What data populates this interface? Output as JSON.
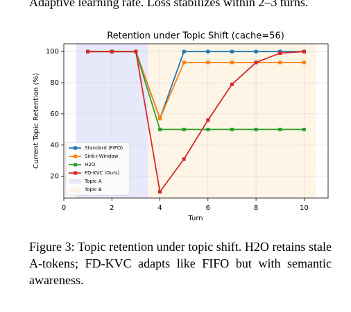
{
  "top_text": "Adaptive learning rate. Loss stabilizes within 2–3 turns.",
  "chart_data": {
    "type": "line",
    "title": "Retention under Topic Shift (cache=56)",
    "xlabel": "Turn",
    "ylabel": "Current Topic Retention (%)",
    "x": [
      1,
      2,
      3,
      4,
      5,
      6,
      7,
      8,
      9,
      10
    ],
    "series": [
      {
        "name": "Standard (FIFO)",
        "color": "#1f77b4",
        "values": [
          100,
          100,
          100,
          57,
          100,
          100,
          100,
          100,
          100,
          100
        ]
      },
      {
        "name": "Sink+Window",
        "color": "#ff7f0e",
        "values": [
          100,
          100,
          100,
          57,
          93,
          93,
          93,
          93,
          93,
          93
        ]
      },
      {
        "name": "H2O",
        "color": "#2ca02c",
        "values": [
          100,
          100,
          100,
          50,
          50,
          50,
          50,
          50,
          50,
          50
        ]
      },
      {
        "name": "FD-KVC (Ours)",
        "color": "#d62728",
        "values": [
          100,
          100,
          100,
          10,
          31,
          56,
          79,
          93,
          99,
          100
        ]
      }
    ],
    "spans": [
      {
        "name": "Topic A",
        "color": "#e8e8fb",
        "xlim": [
          0.5,
          3.5
        ]
      },
      {
        "name": "Topic B",
        "color": "#fef5e7",
        "xlim": [
          3.5,
          10.5
        ]
      }
    ],
    "xlim": [
      0,
      11
    ],
    "ylim": [
      6,
      105
    ],
    "xticks": [
      0,
      2,
      4,
      6,
      8,
      10
    ],
    "yticks": [
      20,
      40,
      60,
      80,
      100
    ],
    "grid": true,
    "legend": "lower left"
  },
  "caption": "Figure 3: Topic retention under topic shift. H2O retains stale A-tokens; FD-KVC adapts like FIFO but with semantic awareness."
}
